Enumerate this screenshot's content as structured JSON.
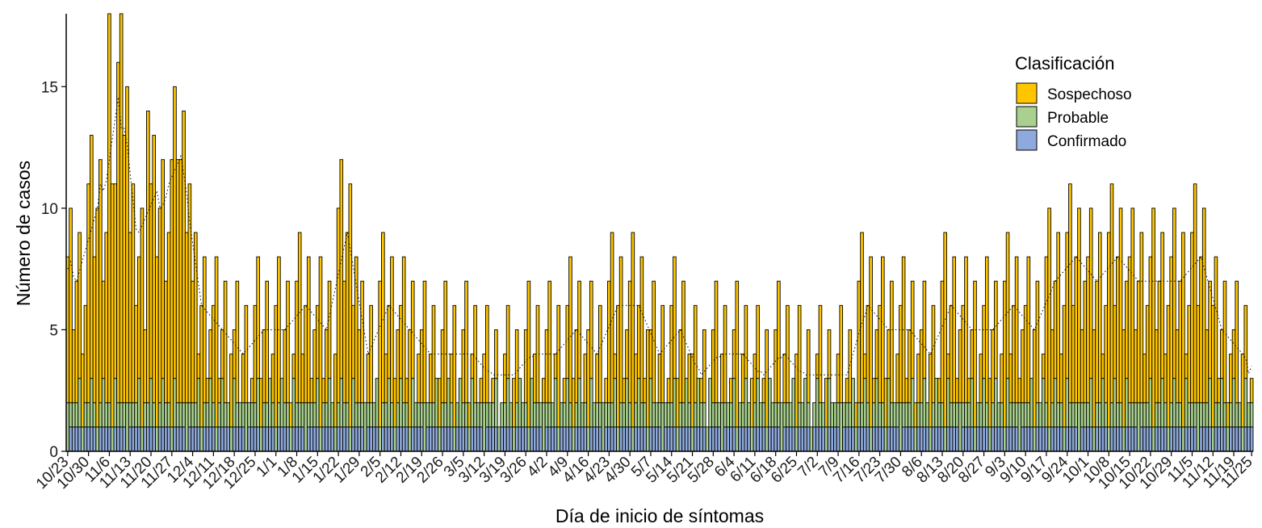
{
  "chart_data": {
    "type": "bar",
    "stacked": true,
    "title": "",
    "xlabel": "Día de inicio de síntomas",
    "ylabel": "Número de casos",
    "ylim": [
      0,
      18
    ],
    "y_ticks": [
      "0",
      "5",
      "10",
      "15"
    ],
    "legend": {
      "title": "Clasificación",
      "position": "top-right",
      "entries": [
        {
          "label": "Sospechoso",
          "color": "#FFC600"
        },
        {
          "label": "Probable",
          "color": "#A9D08E"
        },
        {
          "label": "Confirmado",
          "color": "#8EA9DB"
        }
      ]
    },
    "x_tick_labels": [
      "10/23",
      "10/30",
      "11/6",
      "11/13",
      "11/20",
      "11/27",
      "12/4",
      "12/11",
      "12/18",
      "12/25",
      "1/1",
      "1/8",
      "1/15",
      "1/22",
      "1/29",
      "2/5",
      "2/12",
      "2/19",
      "2/26",
      "3/5",
      "3/12",
      "3/19",
      "3/26",
      "4/2",
      "4/9",
      "4/16",
      "4/23",
      "4/30",
      "5/7",
      "5/14",
      "5/21",
      "5/28",
      "6/4",
      "6/11",
      "6/18",
      "6/25",
      "7/2",
      "7/9",
      "7/16",
      "7/23",
      "7/30",
      "8/6",
      "8/13",
      "8/20",
      "8/27",
      "9/3",
      "9/10",
      "9/17",
      "9/24",
      "10/1",
      "10/8",
      "10/15",
      "10/22",
      "10/29",
      "11/5",
      "11/12",
      "11/19",
      "11/25"
    ],
    "x_tick_day_index": [
      0,
      7,
      14,
      21,
      28,
      35,
      42,
      49,
      56,
      63,
      70,
      77,
      84,
      91,
      98,
      105,
      112,
      119,
      126,
      133,
      140,
      147,
      154,
      161,
      168,
      175,
      182,
      189,
      196,
      203,
      210,
      217,
      224,
      231,
      238,
      245,
      252,
      259,
      266,
      273,
      280,
      287,
      294,
      301,
      308,
      315,
      322,
      329,
      336,
      343,
      350,
      357,
      364,
      371,
      378,
      385,
      392,
      398
    ],
    "weekly_totals": [
      7,
      10,
      16,
      8,
      10,
      12,
      6,
      5,
      4,
      5,
      5,
      6,
      5,
      9,
      4,
      6,
      5,
      4,
      4,
      4,
      3,
      3,
      4,
      4,
      5,
      4,
      6,
      6,
      4,
      5,
      3,
      4,
      4,
      3,
      4,
      3,
      3,
      3,
      6,
      5,
      5,
      4,
      6,
      5,
      5,
      6,
      5,
      7,
      8,
      7,
      8,
      7,
      7,
      7,
      8,
      5,
      4,
      3
    ],
    "weekly_confirmed": [
      1,
      1,
      2,
      1,
      1,
      1,
      1,
      1,
      1,
      1,
      1,
      1,
      1,
      1,
      1,
      1,
      1,
      1,
      1,
      1,
      1,
      1,
      1,
      1,
      1,
      1,
      1,
      1,
      1,
      1,
      1,
      1,
      1,
      1,
      1,
      1,
      1,
      1,
      1,
      1,
      1,
      1,
      1,
      1,
      1,
      1,
      1,
      1,
      1,
      1,
      1,
      1,
      1,
      1,
      1,
      1,
      1,
      1
    ],
    "weekly_probable": [
      1,
      1,
      1,
      1,
      1,
      1,
      1,
      1,
      1,
      1,
      1,
      1,
      1,
      1,
      1,
      1,
      1,
      1,
      1,
      1,
      1,
      1,
      1,
      1,
      1,
      1,
      1,
      1,
      1,
      1,
      1,
      1,
      1,
      1,
      1,
      1,
      1,
      1,
      1,
      1,
      1,
      1,
      1,
      1,
      1,
      1,
      1,
      1,
      1,
      1,
      1,
      1,
      1,
      1,
      1,
      1,
      1,
      1
    ],
    "series": [
      {
        "name": "Confirmado",
        "values": [
          1,
          1,
          1,
          1,
          0,
          1,
          0,
          1,
          1,
          1,
          2,
          1,
          1,
          2,
          1,
          1,
          1,
          0,
          1,
          1,
          1,
          1,
          1,
          1,
          0,
          1,
          1,
          1,
          1,
          1,
          0,
          1,
          1,
          1,
          1,
          1,
          0,
          1,
          1,
          0,
          1,
          1,
          1,
          0,
          1,
          1,
          1,
          1,
          1,
          0,
          1,
          1,
          1,
          1,
          1,
          1,
          0,
          1,
          1,
          1,
          1,
          1,
          0,
          1,
          1,
          1,
          1,
          1,
          0,
          1,
          1,
          1,
          1,
          1,
          0,
          1,
          1,
          1,
          1,
          1,
          0,
          1,
          1,
          1,
          1,
          1,
          0,
          1,
          1,
          1,
          1,
          1,
          0,
          1,
          1,
          1,
          1,
          1,
          0,
          1,
          1,
          1,
          1,
          1
        ]
      },
      {
        "name": "Probable",
        "values": [
          1,
          1,
          1,
          1,
          1,
          1,
          1,
          1,
          1,
          1,
          1,
          1,
          1,
          1,
          1,
          1,
          1,
          1,
          1,
          1,
          1,
          1,
          1,
          1,
          1,
          1,
          1,
          1,
          1,
          1,
          1,
          1,
          1,
          1,
          1,
          1,
          1,
          1,
          1,
          1,
          1,
          1,
          1,
          1,
          1,
          1,
          1,
          1,
          1,
          1,
          1,
          1,
          1,
          1,
          1,
          1,
          1,
          1,
          1,
          1,
          1,
          1,
          1,
          1,
          1,
          1,
          1,
          1,
          1,
          1,
          1,
          1,
          1,
          1,
          1,
          1,
          1,
          1,
          1,
          1,
          1,
          1,
          1,
          1,
          1,
          1,
          1,
          1,
          1,
          1,
          1,
          1,
          1,
          1,
          1,
          1,
          1,
          1,
          1,
          1,
          1,
          1,
          1,
          1
        ]
      },
      {
        "name": "Sospechoso",
        "values": [
          5,
          2,
          6,
          5,
          9,
          16,
          9,
          8,
          5,
          9,
          6,
          3,
          7,
          12,
          10,
          4,
          3,
          3,
          3,
          2,
          2,
          3,
          3,
          4,
          4,
          1,
          3,
          3,
          2,
          2,
          3,
          9,
          7,
          1,
          1,
          2,
          3,
          2,
          3,
          2,
          3,
          2,
          3,
          4,
          2,
          1,
          3,
          4,
          2,
          3,
          3,
          2,
          4,
          2,
          3,
          4,
          3,
          1,
          2,
          3,
          4,
          4,
          3,
          4,
          3,
          2,
          6,
          3,
          2,
          1,
          2,
          2,
          3,
          4,
          2,
          3,
          1,
          3,
          1,
          2,
          2,
          3,
          3,
          8,
          4,
          6,
          2,
          5,
          5,
          3,
          6,
          3,
          4,
          3,
          6,
          5,
          4,
          3,
          2,
          3,
          6,
          4,
          5,
          1
        ]
      }
    ]
  }
}
